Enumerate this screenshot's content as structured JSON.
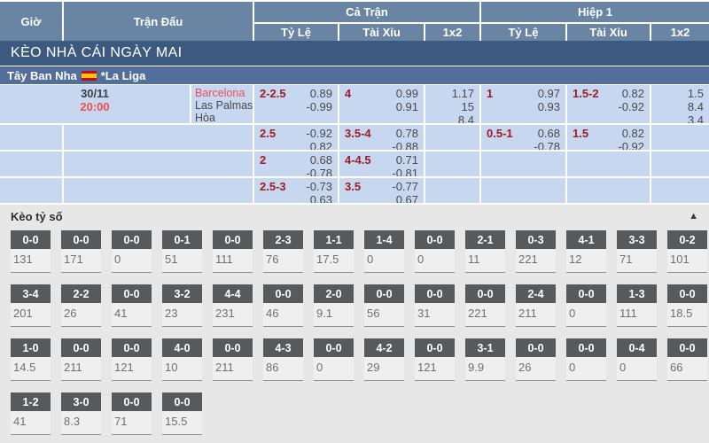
{
  "table": {
    "header": {
      "col_time": "Giờ",
      "col_match": "Trận Đấu",
      "group_full": "Cả Trận",
      "group_half": "Hiệp 1",
      "sub_odds": "Tỷ Lệ",
      "sub_ou": "Tài Xỉu",
      "sub_1x2": "1x2"
    },
    "section_title": "KÈO NHÀ CÁI NGÀY MAI",
    "league": {
      "country": "Tây Ban Nha",
      "flag_icon": "spain-flag",
      "name": "*La Liga"
    },
    "match": {
      "date": "30/11",
      "time": "20:00",
      "teams": [
        "Barcelona",
        "Las Palmas",
        "Hòa"
      ],
      "rows": [
        {
          "ft_hdp": {
            "line": "2-2.5",
            "odds": [
              "0.89",
              "-0.99"
            ]
          },
          "ft_ou": {
            "line": "4",
            "odds": [
              "0.99",
              "0.91"
            ]
          },
          "ft_1x2": [
            "1.17",
            "15",
            "8.4"
          ],
          "h1_hdp": {
            "line": "1",
            "odds": [
              "0.97",
              "0.93"
            ]
          },
          "h1_ou": {
            "line": "1.5-2",
            "odds": [
              "0.82",
              "-0.92"
            ]
          },
          "h1_1x2": [
            "1.5",
            "8.4",
            "3.4"
          ]
        },
        {
          "ft_hdp": {
            "line": "2.5",
            "odds": [
              "-0.92",
              "0.82"
            ]
          },
          "ft_ou": {
            "line": "3.5-4",
            "odds": [
              "0.78",
              "-0.88"
            ]
          },
          "ft_1x2": [],
          "h1_hdp": {
            "line": "0.5-1",
            "odds": [
              "0.68",
              "-0.78"
            ]
          },
          "h1_ou": {
            "line": "1.5",
            "odds": [
              "0.82",
              "-0.92"
            ]
          },
          "h1_1x2": []
        },
        {
          "ft_hdp": {
            "line": "2",
            "odds": [
              "0.68",
              "-0.78"
            ]
          },
          "ft_ou": {
            "line": "4-4.5",
            "odds": [
              "0.71",
              "-0.81"
            ]
          },
          "ft_1x2": [],
          "h1_hdp": null,
          "h1_ou": null,
          "h1_1x2": []
        },
        {
          "ft_hdp": {
            "line": "2.5-3",
            "odds": [
              "-0.73",
              "0.63"
            ]
          },
          "ft_ou": {
            "line": "3.5",
            "odds": [
              "-0.77",
              "0.67"
            ]
          },
          "ft_1x2": [],
          "h1_hdp": null,
          "h1_ou": null,
          "h1_1x2": []
        }
      ]
    }
  },
  "score_section": {
    "title": "Kèo tỷ số",
    "collapse_icon": "▲",
    "rows": [
      [
        {
          "score": "0-0",
          "value": "131"
        },
        {
          "score": "0-0",
          "value": "171"
        },
        {
          "score": "0-0",
          "value": "0"
        },
        {
          "score": "0-1",
          "value": "51"
        },
        {
          "score": "0-0",
          "value": "111"
        },
        {
          "score": "2-3",
          "value": "76"
        },
        {
          "score": "1-1",
          "value": "17.5"
        },
        {
          "score": "1-4",
          "value": "0"
        },
        {
          "score": "0-0",
          "value": "0"
        },
        {
          "score": "2-1",
          "value": "11"
        },
        {
          "score": "0-3",
          "value": "221"
        },
        {
          "score": "4-1",
          "value": "12"
        },
        {
          "score": "3-3",
          "value": "71"
        },
        {
          "score": "0-2",
          "value": "101"
        }
      ],
      [
        {
          "score": "3-4",
          "value": "201"
        },
        {
          "score": "2-2",
          "value": "26"
        },
        {
          "score": "0-0",
          "value": "41"
        },
        {
          "score": "3-2",
          "value": "23"
        },
        {
          "score": "4-4",
          "value": "231"
        },
        {
          "score": "0-0",
          "value": "46"
        },
        {
          "score": "2-0",
          "value": "9.1"
        },
        {
          "score": "0-0",
          "value": "56"
        },
        {
          "score": "0-0",
          "value": "31"
        },
        {
          "score": "0-0",
          "value": "221"
        },
        {
          "score": "2-4",
          "value": "211"
        },
        {
          "score": "0-0",
          "value": "0"
        },
        {
          "score": "1-3",
          "value": "111"
        },
        {
          "score": "0-0",
          "value": "18.5"
        }
      ],
      [
        {
          "score": "1-0",
          "value": "14.5"
        },
        {
          "score": "0-0",
          "value": "211"
        },
        {
          "score": "0-0",
          "value": "121"
        },
        {
          "score": "4-0",
          "value": "10"
        },
        {
          "score": "0-0",
          "value": "211"
        },
        {
          "score": "4-3",
          "value": "86"
        },
        {
          "score": "0-0",
          "value": "0"
        },
        {
          "score": "4-2",
          "value": "29"
        },
        {
          "score": "0-0",
          "value": "121"
        },
        {
          "score": "3-1",
          "value": "9.9"
        },
        {
          "score": "0-0",
          "value": "26"
        },
        {
          "score": "0-0",
          "value": "0"
        },
        {
          "score": "0-4",
          "value": "0"
        },
        {
          "score": "0-0",
          "value": "66"
        }
      ],
      [
        {
          "score": "1-2",
          "value": "41"
        },
        {
          "score": "3-0",
          "value": "8.3"
        },
        {
          "score": "0-0",
          "value": "71"
        },
        {
          "score": "0-0",
          "value": "15.5"
        }
      ]
    ]
  },
  "colors": {
    "header_blue": "#6a84a3",
    "banner_blue": "#3c5a80",
    "league_blue": "#516f9a",
    "row_blue": "#c7d7f0",
    "accent_red": "#f04e53",
    "handicap_red": "#9d1d22",
    "chip_gray": "#58595b"
  }
}
